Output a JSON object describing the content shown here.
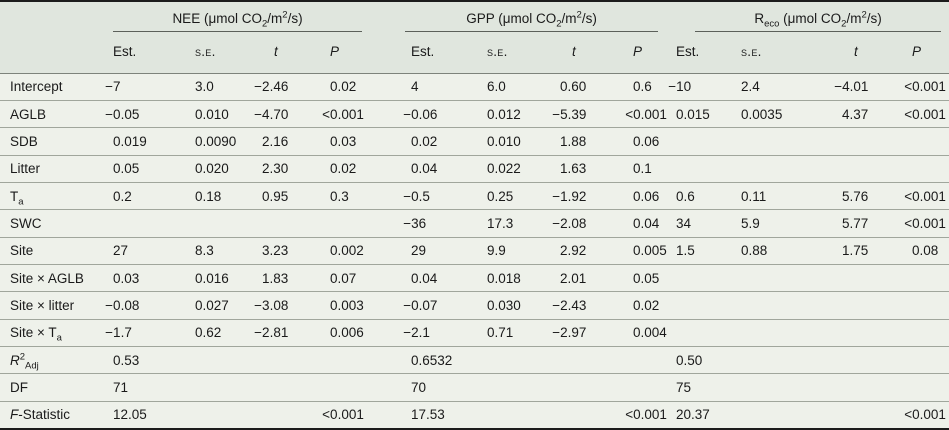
{
  "colors": {
    "header_bg": "#e0e6de",
    "body_bg": "#eef1ea",
    "dark_rule": "#1c1c1c",
    "row_rule": "#a0a69c",
    "text": "#1a1a1a"
  },
  "table": {
    "groups": [
      {
        "key": "nee",
        "label": "NEE (μmol CO~2~/m^2^/s)"
      },
      {
        "key": "gpp",
        "label": "GPP (μmol CO~2~/m^2^/s)"
      },
      {
        "key": "reco",
        "label": "R~eco~ (μmol CO~2~/m^2^/s)"
      }
    ],
    "subheaders": [
      "Est.",
      "§s.e.§",
      "*t*",
      "*P*"
    ],
    "rows": [
      {
        "label": "Intercept",
        "nee": [
          "−7",
          "3.0",
          "−2.46",
          "0.02"
        ],
        "gpp": [
          "4",
          "6.0",
          "0.60",
          "0.6"
        ],
        "reco": [
          "−10",
          "2.4",
          "−4.01",
          "<0.001"
        ]
      },
      {
        "label": "AGLB",
        "nee": [
          "−0.05",
          "0.010",
          "−4.70",
          "<0.001"
        ],
        "gpp": [
          "−0.06",
          "0.012",
          "−5.39",
          "<0.001"
        ],
        "reco": [
          "0.015",
          "0.0035",
          "4.37",
          "<0.001"
        ]
      },
      {
        "label": "SDB",
        "nee": [
          "0.019",
          "0.0090",
          "2.16",
          "0.03"
        ],
        "gpp": [
          "0.02",
          "0.010",
          "1.88",
          "0.06"
        ],
        "reco": [
          "",
          "",
          "",
          ""
        ]
      },
      {
        "label": "Litter",
        "nee": [
          "0.05",
          "0.020",
          "2.30",
          "0.02"
        ],
        "gpp": [
          "0.04",
          "0.022",
          "1.63",
          "0.1"
        ],
        "reco": [
          "",
          "",
          "",
          ""
        ]
      },
      {
        "label": "T~a~",
        "nee": [
          "0.2",
          "0.18",
          "0.95",
          "0.3"
        ],
        "gpp": [
          "−0.5",
          "0.25",
          "−1.92",
          "0.06"
        ],
        "reco": [
          "0.6",
          "0.11",
          "5.76",
          "<0.001"
        ]
      },
      {
        "label": "SWC",
        "nee": [
          "",
          "",
          "",
          ""
        ],
        "gpp": [
          "−36",
          "17.3",
          "−2.08",
          "0.04"
        ],
        "reco": [
          "34",
          "5.9",
          "5.77",
          "<0.001"
        ]
      },
      {
        "label": "Site",
        "nee": [
          "27",
          "8.3",
          "3.23",
          "0.002"
        ],
        "gpp": [
          "29",
          "9.9",
          "2.92",
          "0.005"
        ],
        "reco": [
          "1.5",
          "0.88",
          "1.75",
          "0.08"
        ]
      },
      {
        "label": "Site × AGLB",
        "nee": [
          "0.03",
          "0.016",
          "1.83",
          "0.07"
        ],
        "gpp": [
          "0.04",
          "0.018",
          "2.01",
          "0.05"
        ],
        "reco": [
          "",
          "",
          "",
          ""
        ]
      },
      {
        "label": "Site × litter",
        "nee": [
          "−0.08",
          "0.027",
          "−3.08",
          "0.003"
        ],
        "gpp": [
          "−0.07",
          "0.030",
          "−2.43",
          "0.02"
        ],
        "reco": [
          "",
          "",
          "",
          ""
        ]
      },
      {
        "label": "Site × T~a~",
        "nee": [
          "−1.7",
          "0.62",
          "−2.81",
          "0.006"
        ],
        "gpp": [
          "−2.1",
          "0.71",
          "−2.97",
          "0.004"
        ],
        "reco": [
          "",
          "",
          "",
          ""
        ]
      },
      {
        "label": "*R*^2^~Adj~",
        "nee": [
          "0.53",
          "",
          "",
          ""
        ],
        "gpp": [
          "0.6532",
          "",
          "",
          ""
        ],
        "reco": [
          "0.50",
          "",
          "",
          ""
        ]
      },
      {
        "label": "DF",
        "nee": [
          "71",
          "",
          "",
          ""
        ],
        "gpp": [
          "70",
          "",
          "",
          ""
        ],
        "reco": [
          "75",
          "",
          "",
          ""
        ]
      },
      {
        "label": "*F*-Statistic",
        "nee": [
          "12.05",
          "",
          "",
          "<0.001"
        ],
        "gpp": [
          "17.53",
          "",
          "",
          "<0.001"
        ],
        "reco": [
          "20.37",
          "",
          "",
          "<0.001"
        ]
      }
    ]
  }
}
